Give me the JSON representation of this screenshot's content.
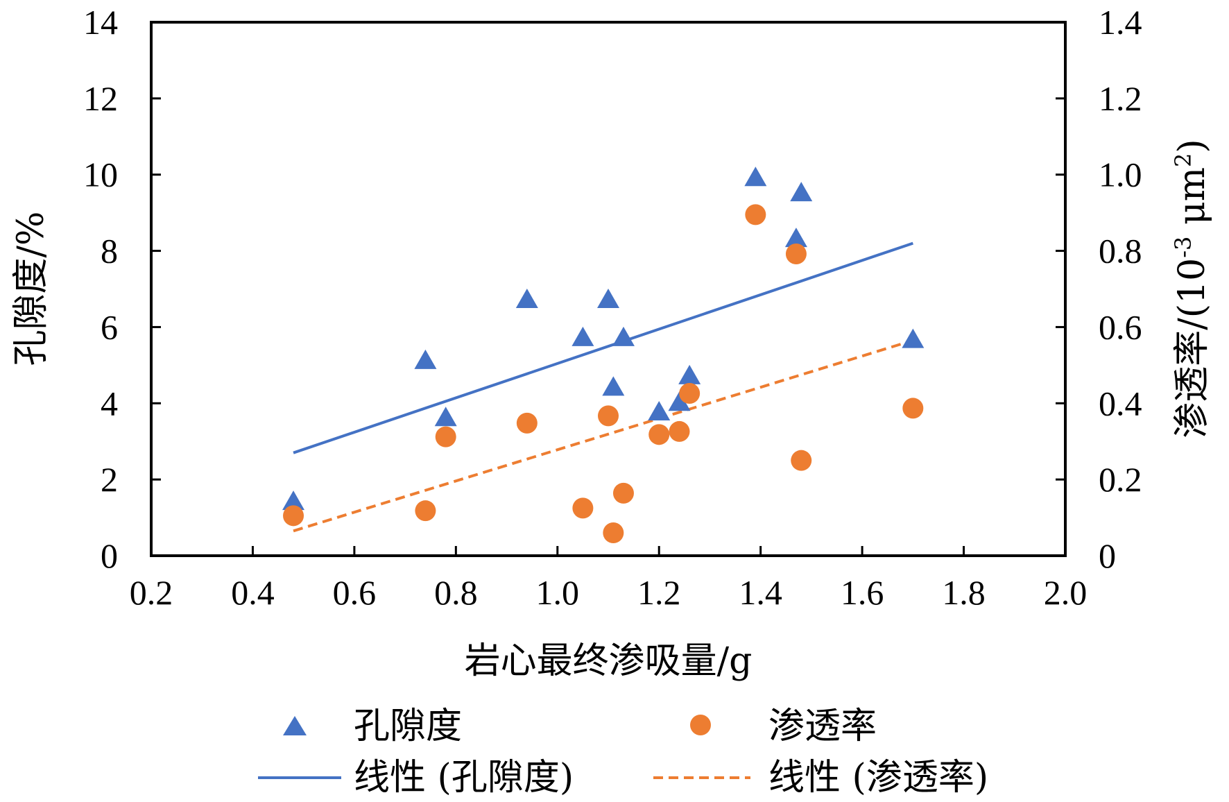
{
  "chart_data": {
    "type": "scatter",
    "x_label": "岩心最终渗吸量/g",
    "y_left_label": "孔隙度/%",
    "y_right_label_main": "渗透率/(10",
    "y_right_label_sup1": "-3",
    "y_right_label_mid": " μm",
    "y_right_label_sup2": "2",
    "y_right_label_end": ")",
    "x_range": [
      0.2,
      2.0
    ],
    "x_ticks": [
      "0.2",
      "0.4",
      "0.6",
      "0.8",
      "1.0",
      "1.2",
      "1.4",
      "1.6",
      "1.8",
      "2.0"
    ],
    "y_left_range": [
      0,
      14
    ],
    "y_left_ticks": [
      "0",
      "2",
      "4",
      "6",
      "8",
      "10",
      "12",
      "14"
    ],
    "y_right_range": [
      0,
      1.4
    ],
    "y_right_ticks": [
      "0",
      "0.2",
      "0.4",
      "0.6",
      "0.8",
      "1.0",
      "1.2",
      "1.4"
    ],
    "grid": false,
    "legend_position": "bottom",
    "series": [
      {
        "name": "孔隙度",
        "axis": "left",
        "marker": "triangle",
        "color": "#4472C4",
        "points": [
          [
            0.48,
            1.4
          ],
          [
            0.74,
            5.1
          ],
          [
            0.78,
            3.6
          ],
          [
            0.94,
            6.7
          ],
          [
            1.05,
            5.7
          ],
          [
            1.1,
            6.7
          ],
          [
            1.11,
            4.4
          ],
          [
            1.13,
            5.7
          ],
          [
            1.2,
            3.75
          ],
          [
            1.24,
            4.0
          ],
          [
            1.26,
            4.7
          ],
          [
            1.39,
            9.9
          ],
          [
            1.47,
            8.3
          ],
          [
            1.48,
            9.5
          ],
          [
            1.7,
            5.65
          ]
        ]
      },
      {
        "name": "渗透率",
        "axis": "right",
        "marker": "circle",
        "color": "#ED7D31",
        "points": [
          [
            0.48,
            0.105
          ],
          [
            0.74,
            0.118
          ],
          [
            0.78,
            0.312
          ],
          [
            0.94,
            0.348
          ],
          [
            1.05,
            0.125
          ],
          [
            1.1,
            0.367
          ],
          [
            1.11,
            0.06
          ],
          [
            1.13,
            0.164
          ],
          [
            1.2,
            0.318
          ],
          [
            1.24,
            0.326
          ],
          [
            1.26,
            0.426
          ],
          [
            1.39,
            0.895
          ],
          [
            1.47,
            0.792
          ],
          [
            1.48,
            0.25
          ],
          [
            1.7,
            0.387
          ]
        ]
      }
    ],
    "trendlines": [
      {
        "name": "线性 (孔隙度)",
        "axis": "left",
        "color": "#4472C4",
        "dash": false,
        "x": [
          0.48,
          1.7
        ],
        "y": [
          2.7,
          8.2
        ]
      },
      {
        "name": "线性 (渗透率)",
        "axis": "right",
        "color": "#ED7D31",
        "dash": true,
        "x": [
          0.48,
          1.7
        ],
        "y": [
          0.065,
          0.565
        ]
      }
    ]
  }
}
